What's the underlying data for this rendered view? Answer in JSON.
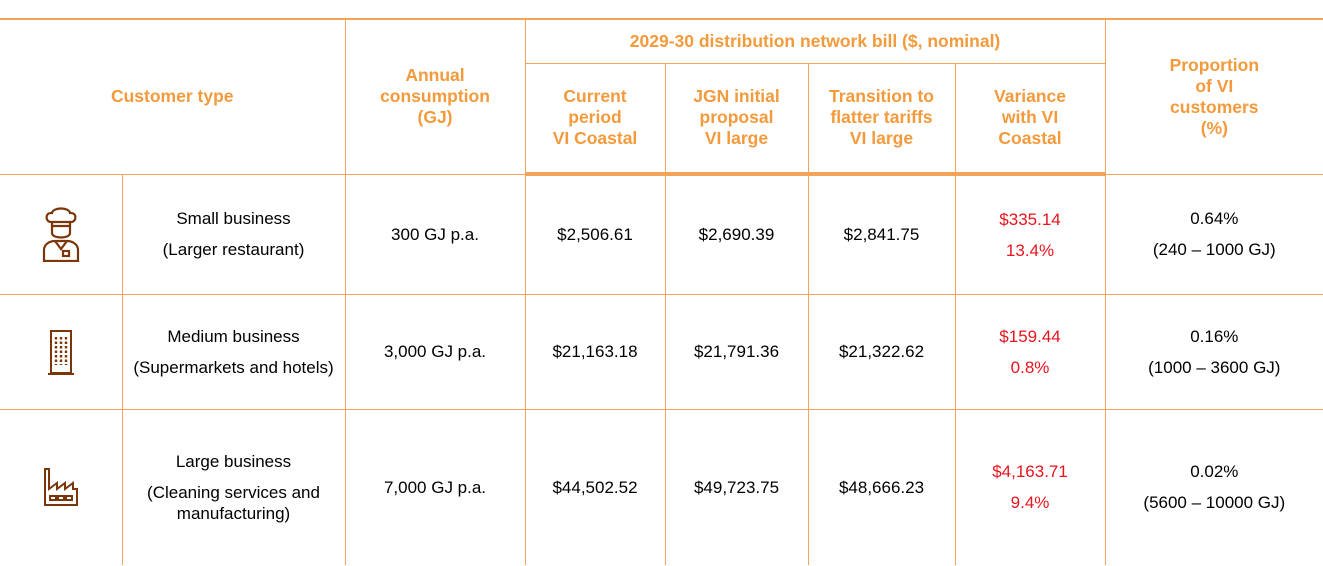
{
  "header": {
    "customer_type": "Customer type",
    "annual": [
      "Annual",
      "consumption",
      "(GJ)"
    ],
    "bill_group": "2029-30 distribution network bill ($, nominal)",
    "columns": [
      [
        "Current",
        "period",
        "VI Coastal"
      ],
      [
        "JGN initial",
        "proposal",
        "VI large"
      ],
      [
        "Transition to",
        "flatter tariffs",
        "VI large"
      ],
      [
        "Variance",
        "with VI",
        "Coastal"
      ]
    ],
    "proportion": [
      "Proportion",
      "of VI",
      "customers",
      "(%)"
    ]
  },
  "rows": [
    {
      "type": [
        "Small business",
        "(Larger restaurant)"
      ],
      "consumption": "300 GJ p.a.",
      "current": "$2,506.61",
      "jgn": "$2,690.39",
      "transition": "$2,841.75",
      "variance": [
        "$335.14",
        "13.4%"
      ],
      "proportion": [
        "0.64%",
        "(240 – 1000 GJ)"
      ]
    },
    {
      "type": [
        "Medium business",
        "(Supermarkets and hotels)"
      ],
      "consumption": "3,000 GJ p.a.",
      "current": "$21,163.18",
      "jgn": "$21,791.36",
      "transition": "$21,322.62",
      "variance": [
        "$159.44",
        "0.8%"
      ],
      "proportion": [
        "0.16%",
        "(1000 – 3600 GJ)"
      ]
    },
    {
      "type": [
        "Large business",
        "(Cleaning services and manufacturing)"
      ],
      "consumption": "7,000 GJ p.a.",
      "current": "$44,502.52",
      "jgn": "$49,723.75",
      "transition": "$48,666.23",
      "variance": [
        "$4,163.71",
        "9.4%"
      ],
      "proportion": [
        "0.02%",
        "(5600 – 10000 GJ)"
      ]
    }
  ]
}
